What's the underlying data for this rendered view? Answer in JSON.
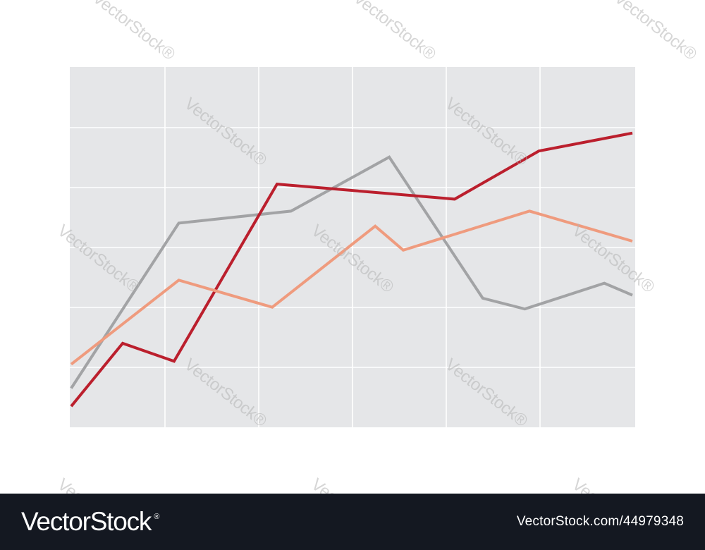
{
  "chart_data": {
    "type": "line",
    "title": "",
    "xlabel": "",
    "ylabel": "",
    "legend": "none",
    "grid": true,
    "xlim": [
      0,
      6
    ],
    "ylim": [
      0,
      6
    ],
    "background_color": "#e5e6e8",
    "grid_color": "#ffffff",
    "series": [
      {
        "color": "#a2a3a5",
        "points": [
          [
            0,
            0.65
          ],
          [
            1.15,
            3.4
          ],
          [
            2.35,
            3.6
          ],
          [
            3.4,
            4.5
          ],
          [
            4.4,
            2.15
          ],
          [
            4.85,
            1.97
          ],
          [
            5.7,
            2.4
          ],
          [
            6,
            2.2
          ]
        ]
      },
      {
        "color": "#bb1f2d",
        "points": [
          [
            0,
            0.35
          ],
          [
            0.55,
            1.4
          ],
          [
            1.1,
            1.1
          ],
          [
            2.2,
            4.05
          ],
          [
            4.1,
            3.8
          ],
          [
            5,
            4.6
          ],
          [
            6,
            4.9
          ]
        ]
      },
      {
        "color": "#ef9b7e",
        "points": [
          [
            0,
            1.05
          ],
          [
            1.15,
            2.45
          ],
          [
            2.15,
            2.0
          ],
          [
            3.25,
            3.35
          ],
          [
            3.55,
            2.95
          ],
          [
            4.9,
            3.6
          ],
          [
            6,
            3.1
          ]
        ]
      }
    ]
  },
  "watermark": {
    "text": "VectorStock",
    "mark": "®"
  },
  "footer": {
    "logo_text": "VectorStock",
    "logo_mark": "®",
    "image_id": "VectorStock.com/44979348",
    "background_color": "#141821"
  }
}
